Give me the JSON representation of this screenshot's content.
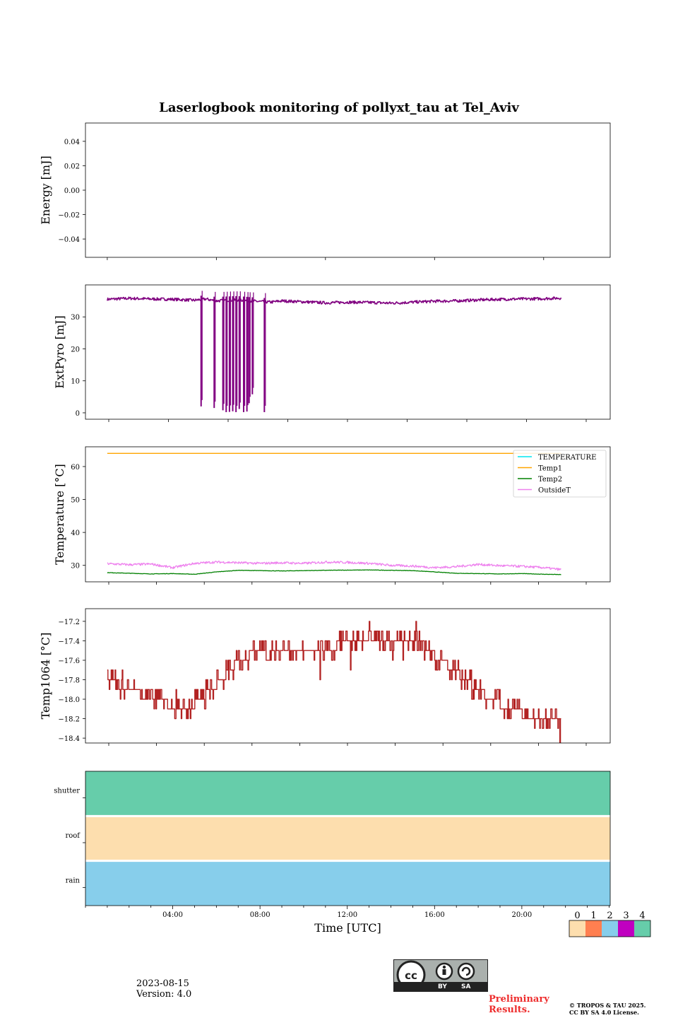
{
  "title": "Laserlogbook monitoring of pollyxt_tau at Tel_Aviv",
  "chart_data": [
    {
      "type": "line",
      "ylabel": "Energy [mJ]",
      "ylim": [
        -0.055,
        0.055
      ],
      "yticks": [
        0.04,
        0.02,
        0.0,
        -0.02,
        -0.04
      ],
      "ytick_labels": [
        "0.04",
        "0.02",
        "0.00",
        "−0.02",
        "−0.04"
      ],
      "xlim": [
        -1,
        23.05
      ],
      "series": []
    },
    {
      "type": "line",
      "ylabel": "ExtPyro [mJ]",
      "ylim": [
        -2,
        40
      ],
      "yticks": [
        0,
        10,
        20,
        30
      ],
      "ytick_labels": [
        "0",
        "10",
        "20",
        "30"
      ],
      "xlim": [
        -1,
        23.05
      ],
      "series": [
        {
          "color": "#800080",
          "x": [
            0.0,
            1.0,
            2.0,
            3.0,
            4.0,
            4.5,
            5.0,
            5.5,
            6.0,
            6.5,
            7.0,
            7.5,
            8.0,
            9.0,
            10.0,
            11.0,
            12.0,
            13.0,
            14.0,
            15.0,
            16.0,
            17.0,
            18.0,
            19.0,
            20.0,
            20.8
          ],
          "y": [
            35.5,
            35.8,
            35.6,
            35.5,
            35.2,
            35.6,
            35.0,
            35.2,
            35.3,
            35.0,
            34.8,
            34.6,
            35.0,
            34.7,
            34.4,
            34.6,
            34.5,
            34.3,
            34.6,
            34.9,
            35.0,
            35.3,
            35.5,
            35.6,
            35.7,
            35.9
          ],
          "drops": [
            {
              "x": 4.3,
              "y": 2
            },
            {
              "x": 4.9,
              "y": 1.5
            },
            {
              "x": 5.3,
              "y": 0.8
            },
            {
              "x": 5.45,
              "y": 0.2
            },
            {
              "x": 5.6,
              "y": 0.3
            },
            {
              "x": 5.75,
              "y": 0.5
            },
            {
              "x": 5.9,
              "y": 0.2
            },
            {
              "x": 6.05,
              "y": 1.2
            },
            {
              "x": 6.25,
              "y": 0.2
            },
            {
              "x": 6.4,
              "y": 0.4
            },
            {
              "x": 6.5,
              "y": 3
            },
            {
              "x": 6.65,
              "y": 5.8
            },
            {
              "x": 7.2,
              "y": 0.2
            }
          ]
        }
      ]
    },
    {
      "type": "line",
      "ylabel": "Temperature [°C]",
      "ylim": [
        25,
        66
      ],
      "yticks": [
        30,
        40,
        50,
        60
      ],
      "ytick_labels": [
        "30",
        "40",
        "50",
        "60"
      ],
      "xlim": [
        -1,
        23.05
      ],
      "legend": "top-right",
      "series": [
        {
          "name": "TEMPERATURE",
          "color": "#00e5ee",
          "x": [],
          "y": []
        },
        {
          "name": "Temp1",
          "color": "#ffa500",
          "x": [
            0,
            20.8
          ],
          "y": [
            64,
            64
          ]
        },
        {
          "name": "Temp2",
          "color": "#008000",
          "x": [
            0,
            2,
            3,
            4,
            5,
            6,
            8,
            10,
            12,
            14,
            15,
            16,
            18,
            19,
            20,
            20.8
          ],
          "y": [
            27.8,
            27.4,
            27.5,
            27.3,
            28.0,
            28.5,
            28.3,
            28.5,
            28.6,
            28.4,
            28.0,
            27.6,
            27.4,
            27.5,
            27.3,
            27.2
          ]
        },
        {
          "name": "OutsideT",
          "color": "#ee82ee",
          "x": [
            0,
            1,
            2,
            3,
            4,
            5,
            6,
            7,
            8,
            9,
            10,
            11,
            12,
            13,
            14,
            15,
            16,
            17,
            18,
            19,
            20,
            20.8
          ],
          "y": [
            30.5,
            30.2,
            30.4,
            29.3,
            30.6,
            31.0,
            30.8,
            30.6,
            30.8,
            30.6,
            31.0,
            30.9,
            30.6,
            30.0,
            29.8,
            29.3,
            29.6,
            30.3,
            29.9,
            29.7,
            29.3,
            28.7
          ]
        }
      ]
    },
    {
      "type": "line",
      "ylabel": "Temp1064 [°C]",
      "ylim": [
        -18.45,
        -17.07
      ],
      "yticks": [
        -17.2,
        -17.4,
        -17.6,
        -17.8,
        -18.0,
        -18.2,
        -18.4
      ],
      "ytick_labels": [
        "−17.2",
        "−17.4",
        "−17.6",
        "−17.8",
        "−18.0",
        "−18.2",
        "−18.4"
      ],
      "xlim": [
        -1,
        23.05
      ],
      "series": [
        {
          "color": "#b22222",
          "x": [
            0.0,
            0.5,
            1.0,
            1.5,
            2.0,
            2.5,
            3.0,
            3.5,
            4.0,
            4.5,
            5.0,
            5.5,
            6.0,
            6.5,
            7.0,
            7.5,
            8.0,
            8.5,
            9.0,
            9.5,
            10.0,
            10.5,
            11.0,
            11.5,
            12.0,
            12.5,
            13.0,
            13.5,
            14.0,
            14.5,
            15.0,
            15.5,
            16.0,
            16.5,
            17.0,
            17.5,
            18.0,
            18.5,
            19.0,
            19.5,
            20.0,
            20.5,
            20.8
          ],
          "y": [
            -17.75,
            -17.85,
            -17.9,
            -17.95,
            -17.98,
            -18.02,
            -18.08,
            -18.1,
            -18.05,
            -17.95,
            -17.85,
            -17.72,
            -17.62,
            -17.55,
            -17.52,
            -17.5,
            -17.5,
            -17.52,
            -17.52,
            -17.5,
            -17.48,
            -17.45,
            -17.42,
            -17.4,
            -17.4,
            -17.38,
            -17.36,
            -17.36,
            -17.38,
            -17.45,
            -17.55,
            -17.62,
            -17.72,
            -17.82,
            -17.9,
            -17.98,
            -18.05,
            -18.1,
            -18.15,
            -18.18,
            -18.2,
            -18.22,
            -18.25
          ]
        }
      ]
    },
    {
      "type": "heatmap",
      "rows": [
        "shutter",
        "roof",
        "rain"
      ],
      "row_values": [
        4,
        0,
        2
      ],
      "xlabel": "Time [UTC]",
      "xlim": [
        -1,
        23.05
      ],
      "xticks": [
        3,
        7,
        11,
        15,
        19
      ],
      "xtick_labels": [
        "04:00",
        "08:00",
        "12:00",
        "16:00",
        "20:00"
      ],
      "colorbar": {
        "labels": [
          "0",
          "1",
          "2",
          "3",
          "4"
        ],
        "colors": [
          "#fddeae",
          "#ff7f50",
          "#87ceeb",
          "#c000c0",
          "#66cdaa"
        ]
      }
    }
  ],
  "footer": {
    "date": "2023-08-15",
    "version": "Version: 4.0",
    "cc_by": "BY",
    "cc_sa": "SA",
    "preliminary_line1": "Preliminary",
    "preliminary_line2": "Results.",
    "copyright_line1": "© TROPOS & TAU 2025.",
    "copyright_line2": "CC BY SA 4.0 License."
  }
}
